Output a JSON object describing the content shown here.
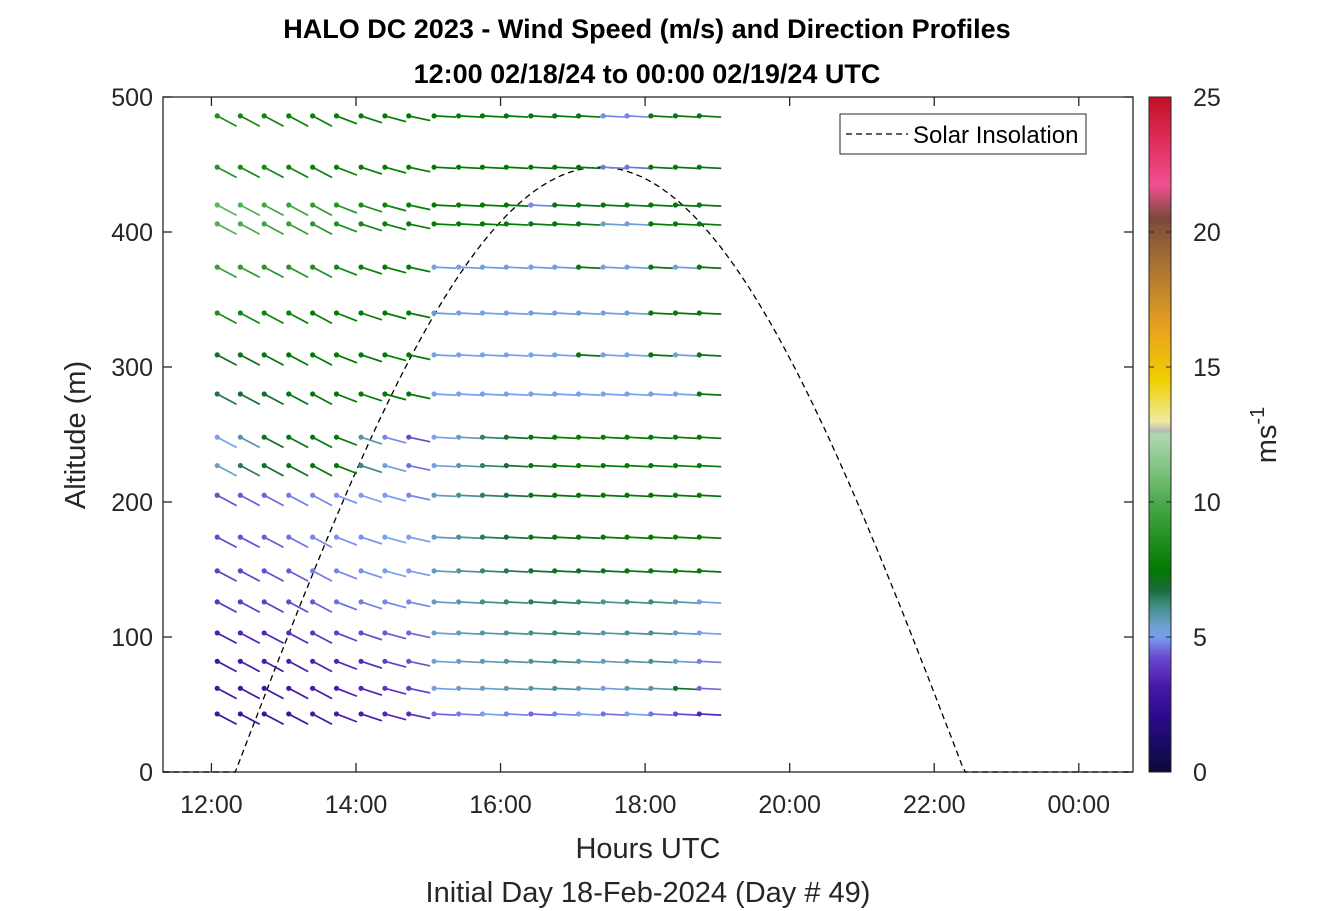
{
  "chart_data": {
    "type": "wind_barb_profile",
    "title": "HALO DC 2023 - Wind Speed (m/s) and Direction Profiles",
    "subtitle": "12:00 02/18/24 to 00:00 02/19/24  UTC",
    "xlabel": "Hours UTC",
    "xlabel2": "Initial Day 18-Feb-2024 (Day # 49)",
    "ylabel": "Altitude (m)",
    "colorbar_label": "ms",
    "colorbar_label_sup": "-1",
    "xlim": [
      11.33,
      24.75
    ],
    "ylim": [
      0,
      500
    ],
    "x_ticks": [
      12,
      14,
      16,
      18,
      20,
      22,
      24
    ],
    "x_tick_labels": [
      "12:00",
      "14:00",
      "16:00",
      "18:00",
      "20:00",
      "22:00",
      "00:00"
    ],
    "y_ticks": [
      0,
      100,
      200,
      300,
      400,
      500
    ],
    "y_tick_labels": [
      "0",
      "100",
      "200",
      "300",
      "400",
      "500"
    ],
    "colorbar_ticks": [
      0,
      5,
      10,
      15,
      20,
      25
    ],
    "colorbar_tick_labels": [
      "0",
      "5",
      "10",
      "15",
      "20",
      "25"
    ],
    "colorbar_range": [
      0,
      25
    ],
    "legend": {
      "label": "Solar Insolation",
      "placement": "top-right",
      "style": "dashed black line"
    },
    "times_hours": [
      12.08,
      12.4,
      12.73,
      13.07,
      13.4,
      13.73,
      14.07,
      14.4,
      14.73,
      15.08,
      15.42,
      15.75,
      16.08,
      16.42,
      16.75,
      17.08,
      17.42,
      17.75,
      18.08,
      18.42,
      18.75
    ],
    "altitudes_m": [
      43,
      62,
      82,
      103,
      126,
      149,
      174,
      205,
      227,
      248,
      280,
      309,
      340,
      374,
      406,
      420,
      448,
      486
    ],
    "wind_speed_ms_by_altitude": [
      [
        2.8,
        2.8,
        2.8,
        2.8,
        3.0,
        3.2,
        3.3,
        3.5,
        3.6,
        4.5,
        4.7,
        5.0,
        4.8,
        4.5,
        4.8,
        5.0,
        4.6,
        5.0,
        4.6,
        4.2,
        3.5
      ],
      [
        2.9,
        2.9,
        2.9,
        3.0,
        3.2,
        3.3,
        3.5,
        3.8,
        4.0,
        5.2,
        5.4,
        5.5,
        5.7,
        5.8,
        6.0,
        5.6,
        5.2,
        5.7,
        5.8,
        7.0,
        4.5
      ],
      [
        3.0,
        3.0,
        3.1,
        3.3,
        3.4,
        3.5,
        3.6,
        4.0,
        4.3,
        5.3,
        5.6,
        5.7,
        5.9,
        6.0,
        6.2,
        5.8,
        5.6,
        5.8,
        6.0,
        5.5,
        4.7
      ],
      [
        3.3,
        3.4,
        3.5,
        3.6,
        3.8,
        4.0,
        4.2,
        4.4,
        4.5,
        5.5,
        5.7,
        5.8,
        6.0,
        6.1,
        6.3,
        6.0,
        5.8,
        6.0,
        6.0,
        5.6,
        5.0
      ],
      [
        3.8,
        3.9,
        4.0,
        4.2,
        4.4,
        4.6,
        4.7,
        4.8,
        4.8,
        5.6,
        5.8,
        6.1,
        6.3,
        6.5,
        6.5,
        6.3,
        6.0,
        6.2,
        6.2,
        5.8,
        5.2
      ],
      [
        4.0,
        4.1,
        4.2,
        4.4,
        4.7,
        4.8,
        4.9,
        5.0,
        5.0,
        5.6,
        5.9,
        6.3,
        6.6,
        6.9,
        7.2,
        7.0,
        7.1,
        7.3,
        7.2,
        7.5,
        7.4
      ],
      [
        4.2,
        4.3,
        4.4,
        4.6,
        4.8,
        4.9,
        4.9,
        5.0,
        5.0,
        5.6,
        6.0,
        6.5,
        6.8,
        7.2,
        7.4,
        7.3,
        7.4,
        7.6,
        7.5,
        7.7,
        7.6
      ],
      [
        4.3,
        4.4,
        4.5,
        4.7,
        4.8,
        4.9,
        5.0,
        5.0,
        4.8,
        5.6,
        6.0,
        6.4,
        6.7,
        7.1,
        7.3,
        7.3,
        7.4,
        7.5,
        7.4,
        7.6,
        7.4
      ],
      [
        5.5,
        6.5,
        7.0,
        7.2,
        7.3,
        7.5,
        6.2,
        5.2,
        4.6,
        5.2,
        5.8,
        6.4,
        6.8,
        7.2,
        7.4,
        7.5,
        7.5,
        7.6,
        7.4,
        7.6,
        7.5
      ],
      [
        5.0,
        5.8,
        7.0,
        7.2,
        7.3,
        7.4,
        5.8,
        4.8,
        4.2,
        5.0,
        5.6,
        6.4,
        6.9,
        7.4,
        7.6,
        7.6,
        7.5,
        7.6,
        7.4,
        7.6,
        7.5
      ],
      [
        6.6,
        6.8,
        7.0,
        7.2,
        7.3,
        7.4,
        7.4,
        7.4,
        7.4,
        5.0,
        5.0,
        5.0,
        5.0,
        5.0,
        5.0,
        5.0,
        5.0,
        5.0,
        5.0,
        5.0,
        7.2
      ],
      [
        7.0,
        7.2,
        7.3,
        7.4,
        7.5,
        7.5,
        7.5,
        7.6,
        7.6,
        5.1,
        5.0,
        5.0,
        5.0,
        5.0,
        5.0,
        7.4,
        5.0,
        5.0,
        7.4,
        5.2,
        7.2
      ],
      [
        8.5,
        8.2,
        8.0,
        7.8,
        7.6,
        7.6,
        7.6,
        7.6,
        7.6,
        5.4,
        5.2,
        5.0,
        5.2,
        5.4,
        5.2,
        5.4,
        5.2,
        5.4,
        7.4,
        7.4,
        7.3
      ],
      [
        9.5,
        9.2,
        9.0,
        8.8,
        8.6,
        8.2,
        7.8,
        7.6,
        7.6,
        5.2,
        5.1,
        5.2,
        5.3,
        5.2,
        5.3,
        7.2,
        5.1,
        5.2,
        7.3,
        5.2,
        7.3
      ],
      [
        10.2,
        10.0,
        9.6,
        9.4,
        9.0,
        8.6,
        8.2,
        7.8,
        7.7,
        7.6,
        7.5,
        7.5,
        7.6,
        7.2,
        7.4,
        7.2,
        5.4,
        5.3,
        7.4,
        7.4,
        7.3
      ],
      [
        10.5,
        10.2,
        9.8,
        9.6,
        9.2,
        8.8,
        8.4,
        8.0,
        7.8,
        7.6,
        7.5,
        7.6,
        7.4,
        4.8,
        7.3,
        7.2,
        7.3,
        7.2,
        7.3,
        7.4,
        7.2
      ],
      [
        8.8,
        8.4,
        8.2,
        8.0,
        7.8,
        7.8,
        7.7,
        7.6,
        7.6,
        7.5,
        7.5,
        7.5,
        7.5,
        7.4,
        7.4,
        7.3,
        4.7,
        4.6,
        7.3,
        7.4,
        7.3
      ],
      [
        8.6,
        8.2,
        8.0,
        7.8,
        7.8,
        7.7,
        7.6,
        7.6,
        7.5,
        7.5,
        7.5,
        7.4,
        7.4,
        7.3,
        7.3,
        7.2,
        4.8,
        4.8,
        7.2,
        7.3,
        7.2
      ]
    ],
    "wind_direction_deg_note": "wind predominantly from the northwest in the early hours, becoming westerly after about 15:00",
    "solar_insolation": {
      "sunrise_hours": 12.33,
      "sunset_hours": 22.42,
      "peak_hours": 17.3,
      "peak_value": 448
    }
  }
}
